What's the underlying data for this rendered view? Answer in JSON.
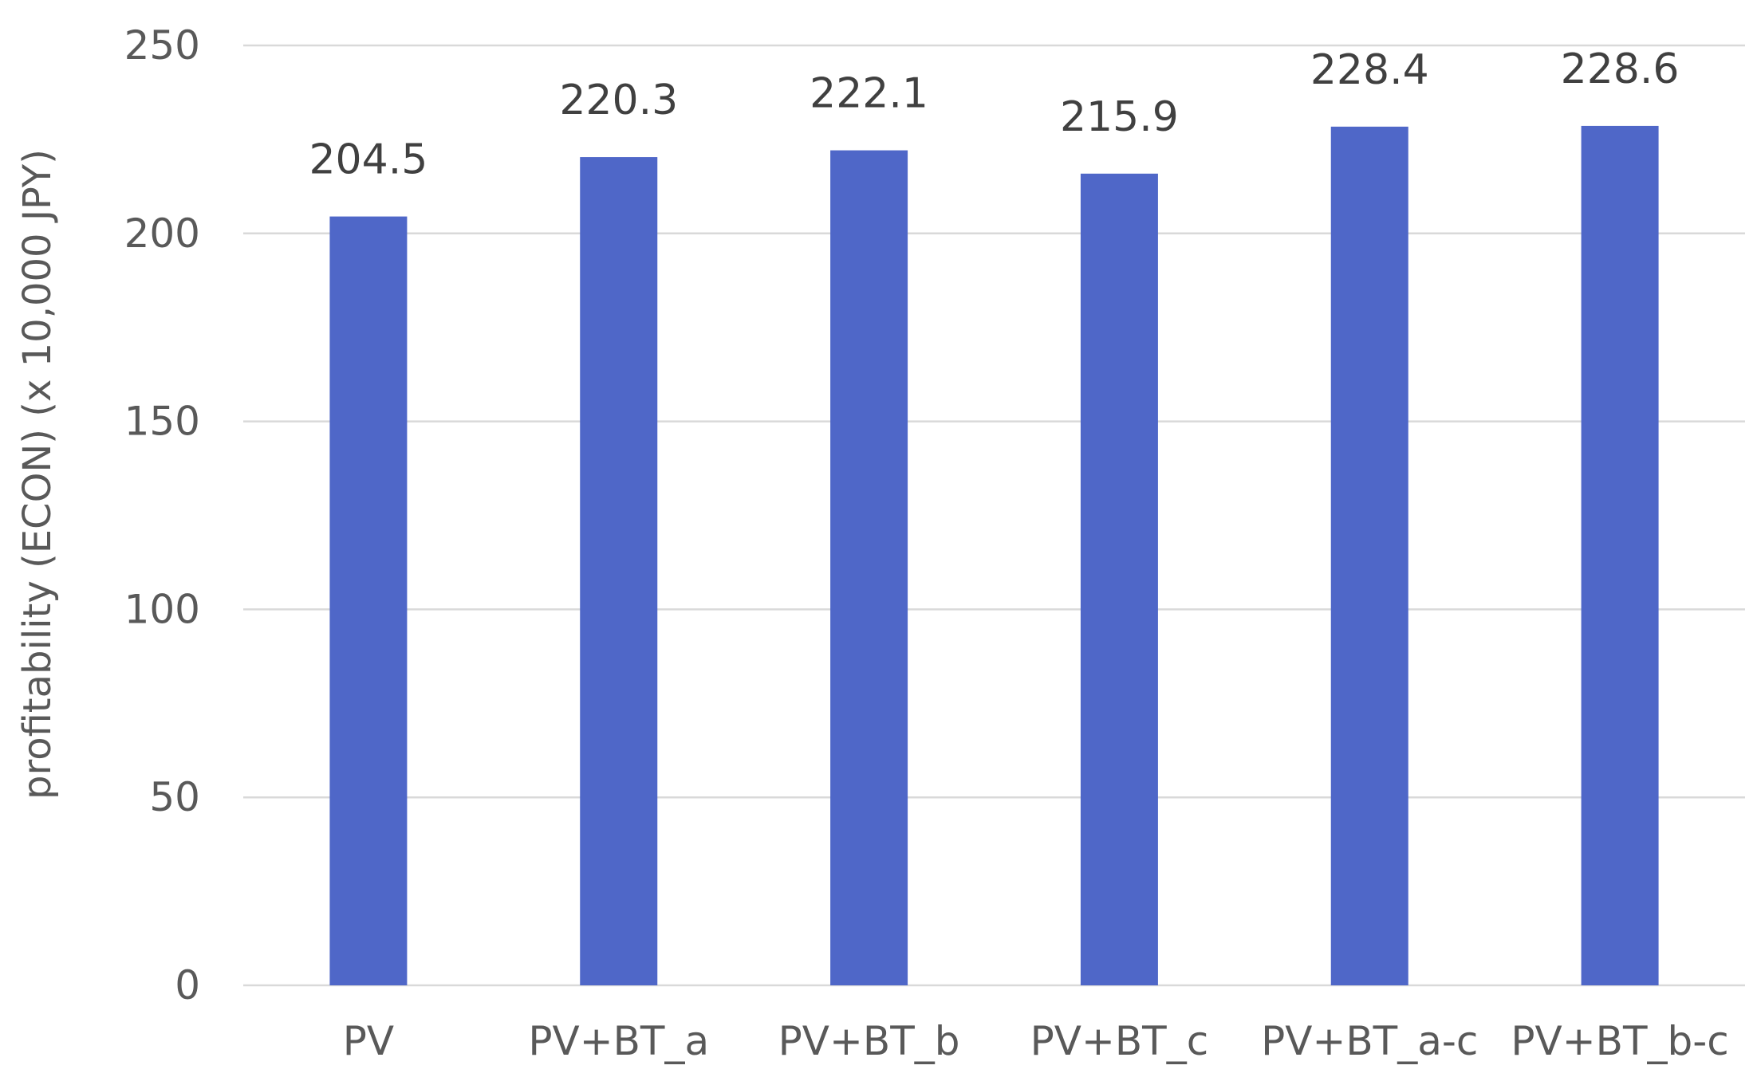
{
  "chart_data": {
    "type": "bar",
    "categories": [
      "PV",
      "PV+BT_a",
      "PV+BT_b",
      "PV+BT_c",
      "PV+BT_a-c",
      "PV+BT_b-c"
    ],
    "values": [
      204.5,
      220.3,
      222.1,
      215.9,
      228.4,
      228.6
    ],
    "data_labels": [
      "204.5",
      "220.3",
      "222.1",
      "215.9",
      "228.4",
      "228.6"
    ],
    "title": "",
    "xlabel": "",
    "ylabel": "profitability (ECON) (x 10,000 JPY)",
    "ylim": [
      0,
      250
    ],
    "yticks": [
      0,
      50,
      100,
      150,
      200,
      250
    ],
    "grid": true,
    "legend": "none",
    "bar_color": "#4f67c8"
  }
}
